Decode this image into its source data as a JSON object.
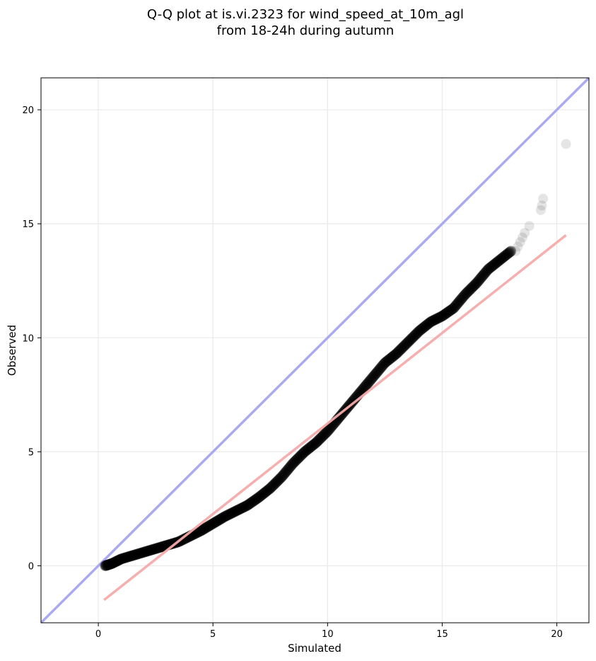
{
  "chart_data": {
    "type": "scatter",
    "title_lines": [
      "Q-Q plot at is.vi.2323 for wind_speed_at_10m_agl",
      "from 18-24h during autumn"
    ],
    "xlabel": "Simulated",
    "ylabel": "Observed",
    "xlim": [
      -2.5,
      21.4
    ],
    "ylim": [
      -2.5,
      21.4
    ],
    "xticks": [
      0,
      5,
      10,
      15,
      20
    ],
    "yticks": [
      0,
      5,
      10,
      15,
      20
    ],
    "xtick_labels": [
      "0",
      "5",
      "10",
      "15",
      "20"
    ],
    "ytick_labels": [
      "0",
      "5",
      "10",
      "15",
      "20"
    ],
    "grid": true,
    "colors": {
      "points": "#000000",
      "identity_line": "#aaaaf0",
      "fit_line": "#f5aaaa"
    },
    "identity_line": {
      "x": [
        -2.5,
        21.4
      ],
      "y": [
        -2.5,
        21.4
      ]
    },
    "fit_line": {
      "x": [
        0.25,
        20.4
      ],
      "y": [
        -1.5,
        14.5
      ]
    },
    "quantile_curve": {
      "x": [
        0.3,
        0.6,
        1.0,
        1.5,
        2.0,
        2.5,
        3.0,
        3.5,
        4.0,
        4.5,
        5.0,
        5.5,
        6.0,
        6.5,
        7.0,
        7.5,
        8.0,
        8.5,
        9.0,
        9.5,
        10.0,
        10.5,
        11.0,
        11.5,
        12.0,
        12.5,
        13.0,
        13.5,
        14.0,
        14.5,
        15.0,
        15.5,
        16.0,
        16.5,
        17.0,
        17.5,
        18.0
      ],
      "y": [
        0.0,
        0.1,
        0.3,
        0.45,
        0.6,
        0.75,
        0.9,
        1.05,
        1.3,
        1.55,
        1.85,
        2.15,
        2.4,
        2.65,
        3.0,
        3.4,
        3.9,
        4.5,
        5.0,
        5.4,
        5.9,
        6.5,
        7.1,
        7.7,
        8.3,
        8.9,
        9.3,
        9.8,
        10.3,
        10.7,
        10.95,
        11.3,
        11.9,
        12.4,
        13.0,
        13.4,
        13.8
      ]
    },
    "tail_points": {
      "x": [
        18.2,
        18.3,
        18.4,
        18.5,
        18.6,
        18.8,
        19.3,
        19.35,
        19.4,
        20.4
      ],
      "y": [
        13.8,
        14.0,
        14.2,
        14.4,
        14.6,
        14.9,
        15.6,
        15.8,
        16.1,
        18.5
      ]
    }
  }
}
